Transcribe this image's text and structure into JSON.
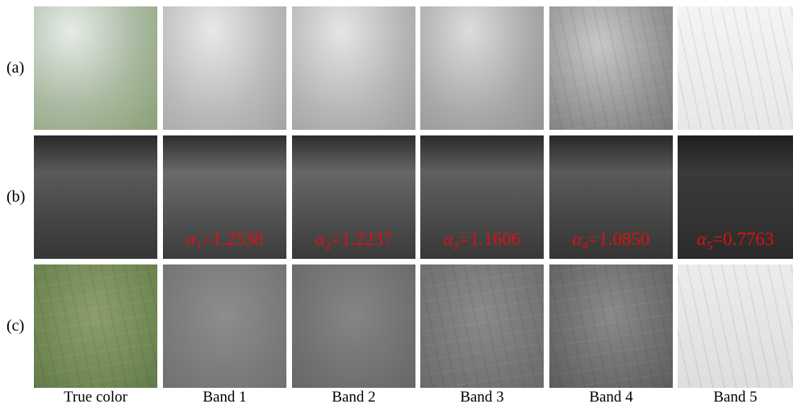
{
  "figure": {
    "row_labels": [
      "(a)",
      "(b)",
      "(c)"
    ],
    "column_labels": [
      "True color",
      "Band 1",
      "Band 2",
      "Band 3",
      "Band 4",
      "Band 5"
    ],
    "annotations": [
      {
        "alpha": "α",
        "sub": "1",
        "rest": "=1.2538"
      },
      {
        "alpha": "α",
        "sub": "2",
        "rest": "=1.2237"
      },
      {
        "alpha": "α",
        "sub": "3",
        "rest": "=1.1606"
      },
      {
        "alpha": "α",
        "sub": "4",
        "rest": "=1.0850"
      },
      {
        "alpha": "α",
        "sub": "5",
        "rest": "=0.7763"
      }
    ]
  }
}
